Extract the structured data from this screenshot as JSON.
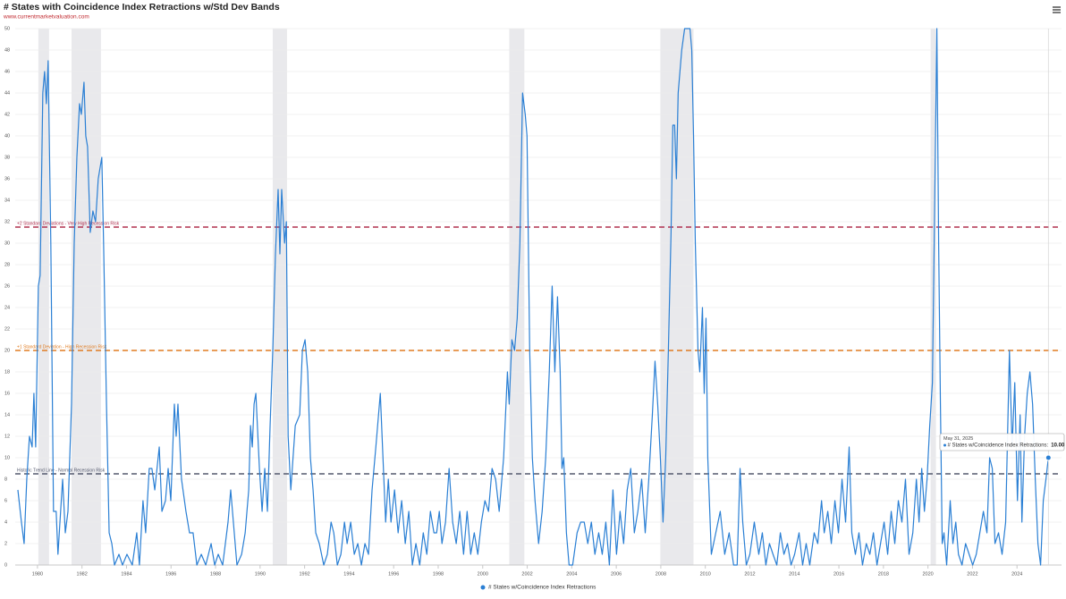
{
  "chart_data": {
    "type": "line",
    "title": "# States with Coincidence Index Retractions w/Std Dev Bands",
    "subtitle": "www.currentmarketvaluation.com",
    "xlim": [
      1979,
      2026
    ],
    "xticks": [
      1980,
      1982,
      1984,
      1986,
      1988,
      1990,
      1992,
      1994,
      1996,
      1998,
      2000,
      2002,
      2004,
      2006,
      2008,
      2010,
      2012,
      2014,
      2016,
      2018,
      2020,
      2022,
      2024
    ],
    "ylim": [
      0,
      50
    ],
    "yticks": [
      0,
      2,
      4,
      6,
      8,
      10,
      12,
      14,
      16,
      18,
      20,
      22,
      24,
      26,
      28,
      30,
      32,
      34,
      36,
      38,
      40,
      42,
      44,
      46,
      48,
      50
    ],
    "grid": true,
    "legend": "bottom",
    "recessions": [
      [
        1980.04,
        1980.52
      ],
      [
        1981.53,
        1982.85
      ],
      [
        1990.57,
        1991.21
      ],
      [
        2001.19,
        2001.87
      ],
      [
        2007.98,
        2009.47
      ],
      [
        2020.12,
        2020.36
      ]
    ],
    "recession_color": "#e9e9ec",
    "reference_lines": [
      {
        "value": 31.5,
        "label": "+2 Standard Deviations - Very High Recession Risk",
        "color": "#b0304f"
      },
      {
        "value": 20,
        "label": "+1 Standard Deviation - High Recession Risk",
        "color": "#e07b20"
      },
      {
        "value": 8.5,
        "label": "Historic Trend Line - Normal Recession Risk",
        "color": "#555a6e"
      }
    ],
    "series": [
      {
        "name": "# States w/Coincidence Index Retractions",
        "color": "#2a7fd4",
        "x": [
          1979.12,
          1979.28,
          1979.4,
          1979.52,
          1979.64,
          1979.76,
          1979.84,
          1979.92,
          1980.04,
          1980.12,
          1980.24,
          1980.32,
          1980.4,
          1980.48,
          1980.6,
          1980.72,
          1980.84,
          1980.92,
          1981.13,
          1981.25,
          1981.37,
          1981.53,
          1981.65,
          1981.77,
          1981.89,
          1981.97,
          1982.09,
          1982.17,
          1982.25,
          1982.37,
          1982.49,
          1982.61,
          1982.73,
          1982.89,
          1982.97,
          1983.1,
          1983.22,
          1983.34,
          1983.46,
          1983.66,
          1983.82,
          1984.02,
          1984.26,
          1984.46,
          1984.58,
          1984.74,
          1984.86,
          1985.02,
          1985.14,
          1985.27,
          1985.47,
          1985.59,
          1985.75,
          1985.87,
          1985.99,
          1986.15,
          1986.23,
          1986.31,
          1986.47,
          1986.67,
          1986.83,
          1986.99,
          1987.16,
          1987.36,
          1987.56,
          1987.8,
          1987.96,
          1988.12,
          1988.32,
          1988.56,
          1988.68,
          1988.8,
          1988.96,
          1989.17,
          1989.33,
          1989.49,
          1989.57,
          1989.65,
          1989.73,
          1989.81,
          1989.97,
          1990.09,
          1990.21,
          1990.33,
          1990.45,
          1990.57,
          1990.69,
          1990.81,
          1990.89,
          1990.97,
          1991.1,
          1991.18,
          1991.26,
          1991.38,
          1991.58,
          1991.78,
          1991.9,
          1992.02,
          1992.14,
          1992.26,
          1992.38,
          1992.5,
          1992.66,
          1992.86,
          1993.02,
          1993.19,
          1993.31,
          1993.47,
          1993.63,
          1993.79,
          1993.91,
          1994.07,
          1994.23,
          1994.39,
          1994.55,
          1994.71,
          1994.87,
          1995.03,
          1995.2,
          1995.4,
          1995.52,
          1995.64,
          1995.76,
          1995.88,
          1996.04,
          1996.2,
          1996.36,
          1996.52,
          1996.68,
          1996.84,
          1997.0,
          1997.17,
          1997.33,
          1997.49,
          1997.65,
          1997.81,
          1997.93,
          1998.05,
          1998.17,
          1998.33,
          1998.49,
          1998.65,
          1998.81,
          1998.97,
          1999.14,
          1999.3,
          1999.46,
          1999.62,
          1999.78,
          1999.94,
          2000.1,
          2000.26,
          2000.42,
          2000.58,
          2000.74,
          2000.94,
          2001.11,
          2001.19,
          2001.31,
          2001.43,
          2001.55,
          2001.67,
          2001.79,
          2001.91,
          2001.99,
          2002.11,
          2002.23,
          2002.35,
          2002.51,
          2002.67,
          2002.83,
          2002.99,
          2003.12,
          2003.24,
          2003.36,
          2003.48,
          2003.56,
          2003.64,
          2003.76,
          2003.88,
          2004.04,
          2004.24,
          2004.4,
          2004.56,
          2004.72,
          2004.88,
          2005.04,
          2005.21,
          2005.37,
          2005.53,
          2005.69,
          2005.85,
          2006.01,
          2006.17,
          2006.33,
          2006.49,
          2006.65,
          2006.81,
          2006.97,
          2007.14,
          2007.3,
          2007.46,
          2007.62,
          2007.74,
          2007.86,
          2007.98,
          2008.1,
          2008.22,
          2008.34,
          2008.46,
          2008.54,
          2008.62,
          2008.7,
          2008.78,
          2008.86,
          2008.94,
          2009.07,
          2009.31,
          2009.39,
          2009.47,
          2009.55,
          2009.67,
          2009.75,
          2009.87,
          2009.95,
          2010.03,
          2010.11,
          2010.27,
          2010.47,
          2010.67,
          2010.87,
          2011.07,
          2011.27,
          2011.43,
          2011.56,
          2011.68,
          2011.84,
          2012.0,
          2012.2,
          2012.4,
          2012.56,
          2012.72,
          2012.88,
          2013.04,
          2013.21,
          2013.37,
          2013.53,
          2013.69,
          2013.85,
          2014.01,
          2014.21,
          2014.37,
          2014.53,
          2014.69,
          2014.89,
          2015.05,
          2015.22,
          2015.34,
          2015.5,
          2015.66,
          2015.82,
          2015.98,
          2016.14,
          2016.3,
          2016.46,
          2016.58,
          2016.74,
          2016.9,
          2017.06,
          2017.23,
          2017.39,
          2017.55,
          2017.71,
          2017.87,
          2018.03,
          2018.19,
          2018.35,
          2018.51,
          2018.67,
          2018.83,
          2018.99,
          2019.15,
          2019.32,
          2019.48,
          2019.6,
          2019.72,
          2019.84,
          2019.96,
          2020.08,
          2020.2,
          2020.28,
          2020.4,
          2020.48,
          2020.56,
          2020.64,
          2020.72,
          2020.84,
          2021.0,
          2021.12,
          2021.25,
          2021.37,
          2021.53,
          2021.69,
          2021.85,
          2022.01,
          2022.17,
          2022.33,
          2022.49,
          2022.65,
          2022.77,
          2022.89,
          2023.01,
          2023.17,
          2023.33,
          2023.49,
          2023.66,
          2023.78,
          2023.9,
          2024.02,
          2024.14,
          2024.22,
          2024.34,
          2024.46,
          2024.58,
          2024.7,
          2024.82,
          2024.94,
          2025.06,
          2025.18,
          2025.3,
          2025.41
        ],
        "values": [
          7,
          4,
          2,
          8,
          12,
          11,
          16,
          11,
          26,
          27,
          44,
          46,
          43,
          47,
          30,
          5,
          5,
          1,
          8,
          3,
          5,
          15,
          30,
          38,
          43,
          42,
          45,
          40,
          39,
          31,
          33,
          32,
          36,
          38,
          30,
          15,
          3,
          2,
          0,
          1,
          0,
          1,
          0,
          3,
          0,
          6,
          3,
          9,
          9,
          7,
          11,
          5,
          6,
          9,
          6,
          15,
          12,
          15,
          8,
          5,
          3,
          3,
          0,
          1,
          0,
          2,
          0,
          1,
          0,
          4,
          7,
          4,
          0,
          1,
          3,
          7,
          13,
          11,
          15,
          16,
          9,
          5,
          9,
          5,
          13,
          20,
          29,
          35,
          29,
          35,
          30,
          32,
          12,
          7,
          13,
          14,
          20,
          21,
          18,
          10,
          7,
          3,
          2,
          0,
          1,
          4,
          3,
          0,
          1,
          4,
          2,
          4,
          1,
          2,
          0,
          2,
          1,
          7,
          11,
          16,
          10,
          4,
          8,
          4,
          7,
          3,
          6,
          2,
          5,
          0,
          2,
          0,
          3,
          1,
          5,
          3,
          3,
          5,
          2,
          4,
          9,
          4,
          2,
          5,
          1,
          5,
          1,
          3,
          1,
          4,
          6,
          5,
          9,
          8,
          5,
          10,
          18,
          15,
          21,
          20,
          23,
          30,
          44,
          42,
          40,
          20,
          10,
          6,
          2,
          5,
          10,
          18,
          26,
          18,
          25,
          18,
          9,
          10,
          3,
          0,
          0,
          3,
          4,
          4,
          2,
          4,
          1,
          3,
          1,
          4,
          0,
          7,
          1,
          5,
          2,
          7,
          9,
          3,
          5,
          8,
          3,
          8,
          14,
          19,
          15,
          10,
          4,
          10,
          20,
          31,
          41,
          41,
          36,
          44,
          46,
          48,
          50,
          50,
          48,
          40,
          30,
          20,
          18,
          24,
          16,
          23,
          10,
          1,
          3,
          5,
          1,
          3,
          0,
          0,
          9,
          4,
          0,
          1,
          4,
          1,
          3,
          0,
          2,
          1,
          0,
          3,
          1,
          2,
          0,
          1,
          3,
          0,
          2,
          0,
          3,
          2,
          6,
          3,
          5,
          2,
          6,
          3,
          8,
          4,
          11,
          3,
          1,
          3,
          0,
          2,
          1,
          3,
          0,
          2,
          4,
          1,
          5,
          2,
          6,
          4,
          8,
          1,
          3,
          8,
          4,
          9,
          5,
          8,
          13,
          17,
          30,
          50,
          30,
          15,
          2,
          3,
          0,
          6,
          2,
          4,
          1,
          0,
          2,
          1,
          0,
          1,
          3,
          5,
          3,
          10,
          9,
          2,
          3,
          1,
          4,
          20,
          11,
          17,
          6,
          14,
          4,
          12,
          16,
          18,
          15,
          8,
          2,
          0,
          6,
          8,
          10
        ]
      }
    ],
    "tooltip": {
      "date": "May 31, 2025",
      "label": "# States w/Coincidence Index Retractions:",
      "value": 10,
      "value_label": "10.00"
    }
  }
}
